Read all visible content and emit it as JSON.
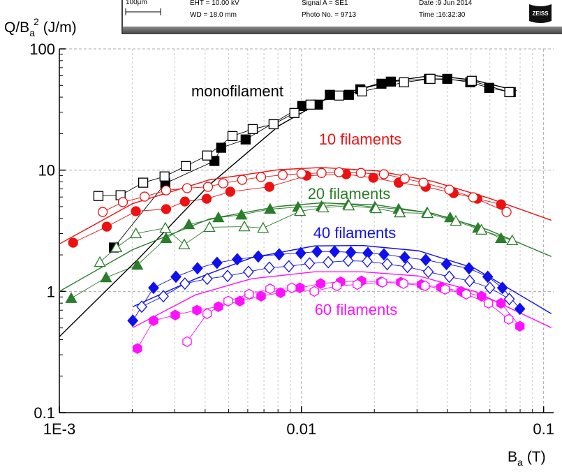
{
  "header": {
    "scale": "100μm",
    "eht": "EHT = 10.00 kV",
    "wd": "WD = 18.0 mm",
    "signal": "Signal A = SE1",
    "photo": "Photo No. = 9713",
    "date": "Date :9 Jun 2014",
    "time": "Time :16:32:30",
    "logo": "ZEISS"
  },
  "chart_data": {
    "type": "scatter",
    "ylabel": [
      "Q/B",
      "a",
      "2",
      "(J/m)"
    ],
    "xlabel": [
      "B",
      "a",
      "(T)"
    ],
    "xscale": "log",
    "yscale": "log",
    "xlim": [
      0.001,
      0.11
    ],
    "ylim": [
      0.1,
      100
    ],
    "xticks": [
      {
        "value": 0.001,
        "label": "1E-3"
      },
      0.01,
      0.1
    ],
    "yticks": [
      0.1,
      1,
      10,
      100
    ],
    "xminorticks": [
      0.002,
      0.003,
      0.004,
      0.005,
      0.006,
      0.007,
      0.008,
      0.009,
      0.02,
      0.03,
      0.04,
      0.05,
      0.06,
      0.07,
      0.08,
      0.09
    ],
    "yminorticks": [
      0.2,
      0.3,
      0.4,
      0.5,
      0.6,
      0.7,
      0.8,
      0.9,
      2,
      3,
      4,
      5,
      6,
      7,
      8,
      9,
      20,
      30,
      40,
      50,
      60,
      70,
      80,
      90
    ],
    "grid": true,
    "annotations": [
      {
        "text": "monofilament",
        "color": "#000000"
      },
      {
        "text": "10 filaments",
        "color": "#ee1111"
      },
      {
        "text": "20 filaments",
        "color": "#2a7d2a"
      },
      {
        "text": "40 filaments",
        "color": "#1010ee"
      },
      {
        "text": "60 filaments",
        "color": "#ff10ff"
      }
    ],
    "series": [
      {
        "color": "#000000",
        "marker": "square",
        "filled": true,
        "x": [
          0.00168,
          0.00274,
          0.00437,
          0.00466,
          0.00588,
          0.01007,
          0.0117,
          0.0131,
          0.0157,
          0.0175,
          0.0214,
          0.0234,
          0.0336,
          0.04,
          0.0498,
          0.0596,
          0.0732
        ],
        "values": [
          2.3,
          7.78,
          11.9,
          15.3,
          17.9,
          33.8,
          34.7,
          41.8,
          41.8,
          46.4,
          51.6,
          53.7,
          56.6,
          56.6,
          53.0,
          47.7,
          44.0
        ]
      },
      {
        "color": "#000000",
        "marker": "square",
        "filled": false,
        "x": [
          0.00145,
          0.00179,
          0.00222,
          0.00272,
          0.00333,
          0.00408,
          0.00519,
          0.00629,
          0.00767,
          0.00935,
          0.0109,
          0.0143,
          0.0178,
          0.0265,
          0.0341,
          0.0505,
          0.0722
        ],
        "values": [
          6.12,
          6.21,
          7.88,
          8.87,
          10.8,
          13.2,
          19.1,
          21.8,
          23.9,
          29.6,
          34.7,
          41.2,
          44.6,
          53.0,
          56.6,
          54.5,
          44.0
        ]
      },
      {
        "color": "#ee1111",
        "marker": "circle",
        "filled": true,
        "x": [
          0.00114,
          0.00157,
          0.00207,
          0.00276,
          0.0033,
          0.00406,
          0.00508,
          0.00737,
          0.0105,
          0.0153,
          0.0198,
          0.0252,
          0.0326,
          0.0425,
          0.0532,
          0.0667
        ],
        "values": [
          2.52,
          3.42,
          4.58,
          4.77,
          5.51,
          5.81,
          6.64,
          7.28,
          9.0,
          9.25,
          8.65,
          7.88,
          7.28,
          6.46,
          5.81,
          5.22
        ]
      },
      {
        "color": "#ee1111",
        "marker": "circle",
        "filled": false,
        "x": [
          0.00151,
          0.00183,
          0.00225,
          0.00276,
          0.00337,
          0.00411,
          0.00475,
          0.00569,
          0.00681,
          0.00836,
          0.01,
          0.0121,
          0.0143,
          0.0176,
          0.0219,
          0.0267,
          0.0319,
          0.0408,
          0.0512,
          0.0703
        ],
        "values": [
          4.52,
          5.45,
          6.05,
          6.81,
          7.1,
          7.28,
          7.78,
          8.32,
          8.77,
          9.12,
          9.36,
          9.48,
          9.61,
          9.48,
          9.25,
          8.53,
          7.88,
          6.9,
          5.97,
          4.52
        ]
      },
      {
        "color": "#2a7d2a",
        "marker": "triangle",
        "filled": true,
        "x": [
          0.00112,
          0.00156,
          0.0021,
          0.00276,
          0.00343,
          0.00454,
          0.00565,
          0.00742,
          0.00968,
          0.0121,
          0.0156,
          0.0201,
          0.0252,
          0.033,
          0.0411,
          0.0536,
          0.0667
        ],
        "values": [
          0.877,
          1.3,
          1.65,
          2.74,
          3.56,
          4.06,
          4.28,
          4.77,
          4.96,
          5.03,
          5.22,
          4.96,
          4.77,
          4.46,
          4.06,
          3.33,
          2.74
        ]
      },
      {
        "color": "#2a7d2a",
        "marker": "triangle",
        "filled": false,
        "x": [
          0.00147,
          0.00172,
          0.00207,
          0.00274,
          0.00328,
          0.00417,
          0.00581,
          0.00694,
          0.00986,
          0.0123,
          0.0157,
          0.0203,
          0.0255,
          0.0332,
          0.0434,
          0.0554,
          0.0742
        ],
        "values": [
          1.74,
          2.3,
          3.0,
          3.33,
          2.43,
          3.38,
          3.42,
          3.33,
          4.58,
          4.9,
          5.09,
          4.83,
          4.46,
          4.4,
          3.8,
          3.21,
          2.63
        ]
      },
      {
        "color": "#1010ee",
        "marker": "diamond",
        "filled": true,
        "x": [
          0.00201,
          0.00245,
          0.00303,
          0.00372,
          0.00448,
          0.00543,
          0.00663,
          0.00809,
          0.00993,
          0.0116,
          0.0137,
          0.016,
          0.0188,
          0.0219,
          0.0267,
          0.0326,
          0.0397,
          0.0492,
          0.0588,
          0.0676,
          0.0798
        ],
        "values": [
          0.574,
          1.07,
          1.32,
          1.55,
          1.72,
          1.84,
          1.94,
          2.02,
          2.07,
          2.13,
          2.13,
          2.1,
          2.07,
          2.02,
          1.91,
          1.82,
          1.68,
          1.55,
          1.32,
          1.07,
          0.718
        ]
      },
      {
        "color": "#1010ee",
        "marker": "diamond",
        "filled": false,
        "x": [
          0.00219,
          0.00269,
          0.0033,
          0.00408,
          0.00495,
          0.00604,
          0.00737,
          0.00887,
          0.0108,
          0.0129,
          0.0156,
          0.0187,
          0.0226,
          0.0274,
          0.0334,
          0.0408,
          0.0495,
          0.06,
          0.0722
        ],
        "values": [
          0.748,
          0.912,
          1.16,
          1.27,
          1.34,
          1.45,
          1.57,
          1.61,
          1.7,
          1.74,
          1.79,
          1.77,
          1.68,
          1.59,
          1.45,
          1.32,
          1.22,
          1.07,
          0.865
        ]
      },
      {
        "color": "#ff10ff",
        "marker": "hexagon",
        "filled": true,
        "x": [
          0.0021,
          0.00245,
          0.00301,
          0.0037,
          0.00454,
          0.00557,
          0.00681,
          0.0082,
          0.00986,
          0.012,
          0.0145,
          0.0177,
          0.0213,
          0.0257,
          0.0313,
          0.0377,
          0.0457,
          0.0554,
          0.0667,
          0.0798
        ],
        "values": [
          0.338,
          0.574,
          0.638,
          0.7,
          0.748,
          0.832,
          0.912,
          0.975,
          1.07,
          1.16,
          1.2,
          1.22,
          1.2,
          1.19,
          1.14,
          1.08,
          1.0,
          0.912,
          0.798,
          0.516
        ]
      },
      {
        "color": "#ff10ff",
        "marker": "hexagon",
        "filled": false,
        "x": [
          0.00337,
          0.00408,
          0.00498,
          0.00608,
          0.00742,
          0.00912,
          0.0113,
          0.014,
          0.017,
          0.0216,
          0.0264,
          0.0324,
          0.0392,
          0.0479,
          0.0592,
          0.0718
        ],
        "values": [
          0.385,
          0.655,
          0.832,
          0.948,
          1.05,
          1.07,
          1.0,
          1.11,
          1.14,
          1.19,
          1.16,
          1.11,
          1.04,
          0.948,
          0.798,
          0.589
        ]
      },
      {
        "color": "#000000",
        "marker": "none",
        "filled": false,
        "x": [
          0.001,
          0.00214,
          0.00417,
          0.00809,
          0.0129,
          0.0219,
          0.0348,
          0.0519,
          0.0773
        ],
        "values": [
          0.423,
          1.89,
          7.57,
          23.3,
          39.6,
          53.0,
          60.5,
          55.1,
          45.2
        ]
      },
      {
        "color": "#ee1111",
        "marker": "none",
        "filled": false,
        "x": [
          0.001,
          0.00201,
          0.00417,
          0.00809,
          0.0121,
          0.0205,
          0.0348,
          0.0592,
          0.1076
        ],
        "values": [
          2.46,
          5.3,
          8.32,
          10.1,
          10.5,
          9.87,
          8.09,
          5.89,
          3.86
        ]
      },
      {
        "color": "#2a7d2a",
        "marker": "none",
        "filled": false,
        "x": [
          0.001,
          0.00201,
          0.00417,
          0.00809,
          0.0121,
          0.0205,
          0.0348,
          0.0592,
          0.1076
        ],
        "values": [
          1.0,
          2.21,
          3.96,
          5.03,
          5.37,
          5.16,
          4.4,
          3.21,
          1.94
        ]
      },
      {
        "color": "#1010ee",
        "marker": "none",
        "filled": false,
        "x": [
          0.00201,
          0.00365,
          0.0062,
          0.0113,
          0.0179,
          0.0305,
          0.0519,
          0.1076
        ],
        "values": [
          0.748,
          1.27,
          1.89,
          2.37,
          2.39,
          2.16,
          1.55,
          0.655
        ]
      },
      {
        "color": "#ff10ff",
        "marker": "none",
        "filled": false,
        "x": [
          0.00201,
          0.00365,
          0.0062,
          0.0113,
          0.0179,
          0.0305,
          0.0519,
          0.1076
        ],
        "values": [
          0.502,
          0.936,
          1.27,
          1.45,
          1.45,
          1.34,
          1.0,
          0.502
        ]
      }
    ]
  }
}
